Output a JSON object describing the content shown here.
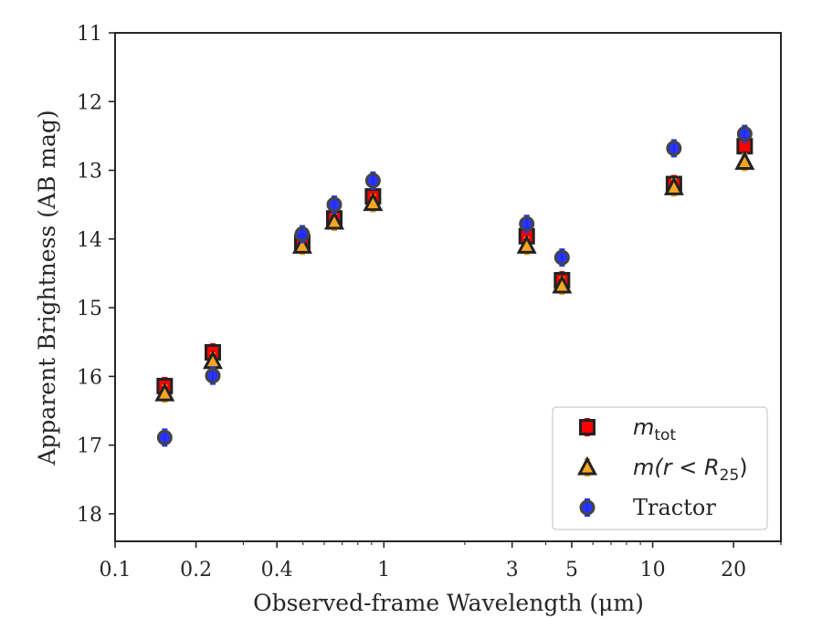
{
  "chart_data": {
    "type": "scatter",
    "xlabel": "Observed-frame Wavelength (μm)",
    "ylabel": "Apparent Brightness (AB mag)",
    "xscale": "log",
    "xlim": [
      0.1,
      30
    ],
    "ylim": [
      18.4,
      11
    ],
    "y_inverted": true,
    "grid": false,
    "legend_position": "lower-right",
    "x_ticks": [
      {
        "value": 0.1,
        "label": "0.1"
      },
      {
        "value": 0.2,
        "label": "0.2"
      },
      {
        "value": 0.4,
        "label": "0.4"
      },
      {
        "value": 1,
        "label": "1"
      },
      {
        "value": 3,
        "label": "3"
      },
      {
        "value": 5,
        "label": "5"
      },
      {
        "value": 10,
        "label": "10"
      },
      {
        "value": 20,
        "label": "20"
      }
    ],
    "y_ticks": [
      {
        "value": 11,
        "label": "11"
      },
      {
        "value": 12,
        "label": "12"
      },
      {
        "value": 13,
        "label": "13"
      },
      {
        "value": 14,
        "label": "14"
      },
      {
        "value": 15,
        "label": "15"
      },
      {
        "value": 16,
        "label": "16"
      },
      {
        "value": 17,
        "label": "17"
      },
      {
        "value": 18,
        "label": "18"
      }
    ],
    "series": [
      {
        "legend_main": "m",
        "legend_sub": "tot",
        "legend_tail": "",
        "marker": "square",
        "color": "#ff0000",
        "errbar_color": "#dd0000",
        "x": [
          0.153,
          0.231,
          0.497,
          0.654,
          0.911,
          3.4,
          4.6,
          12.0,
          22.0
        ],
        "y": [
          16.14,
          15.65,
          14.05,
          13.7,
          13.38,
          13.96,
          14.6,
          13.2,
          12.65
        ]
      },
      {
        "legend_main": "m(r < R",
        "legend_sub": "25",
        "legend_tail": ")",
        "marker": "triangle",
        "color": "#f5a623",
        "errbar_color": "#e8a317",
        "x": [
          0.153,
          0.231,
          0.497,
          0.654,
          0.911,
          3.4,
          4.6,
          12.0,
          22.0
        ],
        "y": [
          16.25,
          15.78,
          14.1,
          13.75,
          13.48,
          14.1,
          14.68,
          13.25,
          12.88
        ]
      },
      {
        "legend_main": "Tractor",
        "legend_sub": "",
        "legend_tail": "",
        "marker": "circle",
        "color": "#1f2aff",
        "errbar_color": "#2233ee",
        "x": [
          0.153,
          0.231,
          0.497,
          0.654,
          0.911,
          3.4,
          4.6,
          12.0,
          22.0
        ],
        "y": [
          16.89,
          15.99,
          13.93,
          13.5,
          13.15,
          13.78,
          14.27,
          12.68,
          12.47
        ]
      }
    ]
  }
}
